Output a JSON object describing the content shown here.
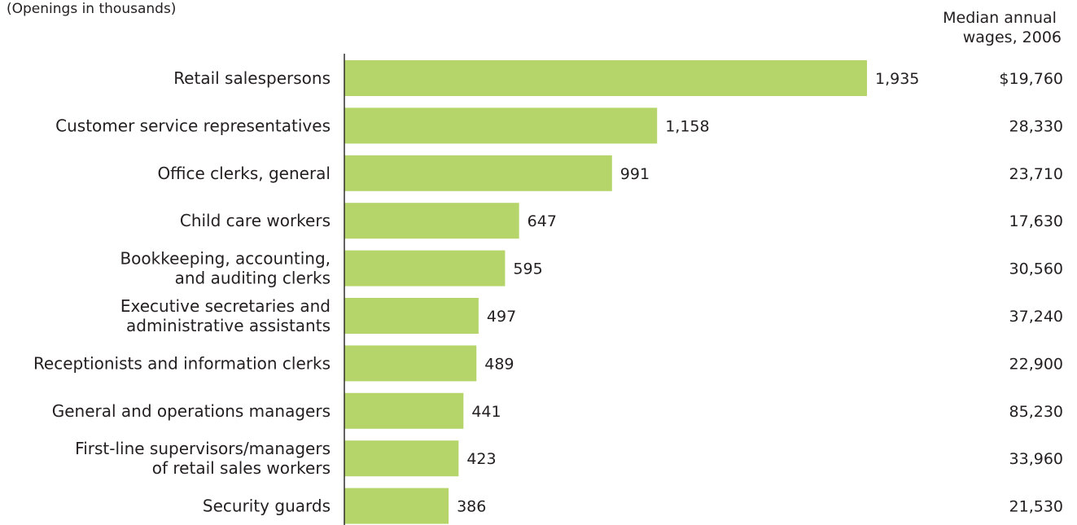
{
  "chart_data": {
    "type": "bar",
    "orientation": "horizontal",
    "subtitle": "(Openings in thousands)",
    "wages_header": [
      "Median annual",
      "wages, 2006"
    ],
    "bar_color": "#b5d56a",
    "axis_color": "#231f20",
    "xlim": [
      0,
      1935
    ],
    "grid": false,
    "legend": "none",
    "categories": [
      [
        "Retail salespersons"
      ],
      [
        "Customer service representatives"
      ],
      [
        "Office clerks, general"
      ],
      [
        "Child care workers"
      ],
      [
        "Bookkeeping, accounting,",
        "and auditing clerks"
      ],
      [
        "Executive secretaries and",
        "administrative assistants"
      ],
      [
        "Receptionists and information clerks"
      ],
      [
        "General and operations managers"
      ],
      [
        "First-line supervisors/managers",
        "of retail sales workers"
      ],
      [
        "Security guards"
      ]
    ],
    "values": [
      1935,
      1158,
      991,
      647,
      595,
      497,
      489,
      441,
      423,
      386
    ],
    "value_labels": [
      "1,935",
      "1,158",
      "991",
      "647",
      "595",
      "497",
      "489",
      "441",
      "423",
      "386"
    ],
    "wages": [
      "$19,760",
      "28,330",
      "23,710",
      "17,630",
      "30,560",
      "37,240",
      "22,900",
      "85,230",
      "33,960",
      "21,530"
    ]
  }
}
